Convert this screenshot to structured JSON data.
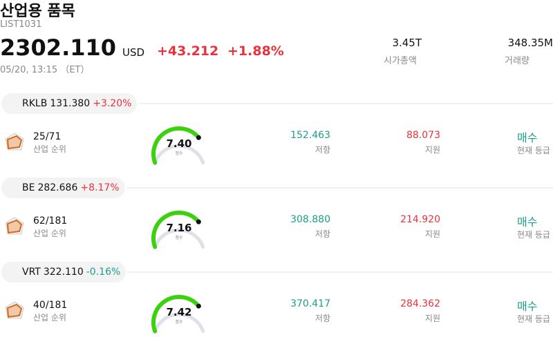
{
  "header": {
    "title": "산업용 품목",
    "code": "LIST1031",
    "price": "2302.110",
    "currency": "USD",
    "change": "+43.212",
    "change_pct": "+1.88%",
    "time": "05/20, 13:15 （ET）",
    "market_cap": "3.45T",
    "market_cap_label": "시가총액",
    "volume": "348.35M",
    "volume_label": "거래량"
  },
  "stocks": [
    {
      "ticker": "RKLB",
      "price": "131.380",
      "change": "+3.20%",
      "rank": "25/71",
      "rank_label": "산업 순위",
      "score": "7.40",
      "score_label": "점수",
      "resistance": "152.463",
      "resistance_label": "저항",
      "support": "88.073",
      "support_label": "지원",
      "rating": "매수",
      "rating_label": "현재 등급"
    },
    {
      "ticker": "BE",
      "price": "282.686",
      "change": "+8.17%",
      "rank": "62/181",
      "rank_label": "산업 순위",
      "score": "7.16",
      "score_label": "점수",
      "resistance": "308.880",
      "resistance_label": "저항",
      "support": "214.920",
      "support_label": "지원",
      "rating": "매수",
      "rating_label": "현재 등급"
    },
    {
      "ticker": "VRT",
      "price": "322.110",
      "change": "-0.16%",
      "rank": "40/181",
      "rank_label": "산업 순위",
      "score": "7.42",
      "score_label": "점수",
      "resistance": "370.417",
      "resistance_label": "저항",
      "support": "284.362",
      "support_label": "지원",
      "rating": "매수",
      "rating_label": "현재 등급"
    }
  ]
}
